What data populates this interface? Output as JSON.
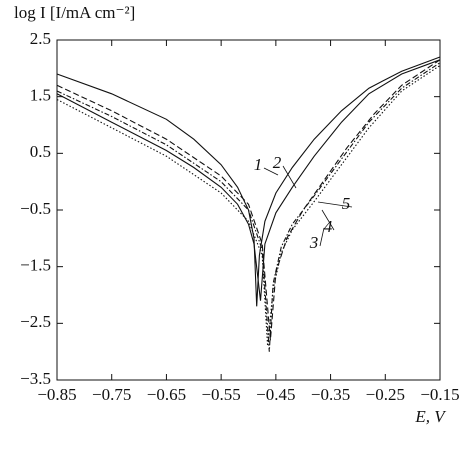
{
  "chart_data": {
    "type": "line",
    "y_label": "log I [I/mA cm⁻²]",
    "x_label": "E, V",
    "xlim": [
      -0.85,
      -0.15
    ],
    "ylim": [
      -3.5,
      2.5
    ],
    "xticks": [
      {
        "value": -0.85,
        "label": "−0.85"
      },
      {
        "value": -0.75,
        "label": "−0.75"
      },
      {
        "value": -0.65,
        "label": "−0.65"
      },
      {
        "value": -0.55,
        "label": "−0.55"
      },
      {
        "value": -0.45,
        "label": "−0.45"
      },
      {
        "value": -0.35,
        "label": "−0.35"
      },
      {
        "value": -0.25,
        "label": "−0.25"
      },
      {
        "value": -0.15,
        "label": "−0.15"
      }
    ],
    "yticks": [
      2.5,
      1.5,
      0.5,
      {
        "value": -0.5,
        "label": "−0.5"
      },
      {
        "value": -1.5,
        "label": "−1.5"
      },
      {
        "value": -2.5,
        "label": "−2.5"
      },
      {
        "value": -3.5,
        "label": "−3.5"
      }
    ],
    "series": [
      {
        "name": "1",
        "color": "#111111",
        "dash": "solid",
        "x": [
          -0.85,
          -0.75,
          -0.65,
          -0.6,
          -0.55,
          -0.52,
          -0.5,
          -0.49,
          -0.485,
          -0.48,
          -0.47,
          -0.45,
          -0.42,
          -0.38,
          -0.33,
          -0.28,
          -0.22,
          -0.15
        ],
        "values": [
          1.9,
          1.55,
          1.1,
          0.75,
          0.3,
          -0.1,
          -0.5,
          -1.0,
          -2.2,
          -1.3,
          -0.7,
          -0.2,
          0.25,
          0.75,
          1.25,
          1.65,
          1.95,
          2.2
        ]
      },
      {
        "name": "2",
        "color": "#111111",
        "dash": "solid",
        "x": [
          -0.85,
          -0.75,
          -0.65,
          -0.6,
          -0.55,
          -0.52,
          -0.5,
          -0.49,
          -0.478,
          -0.47,
          -0.45,
          -0.42,
          -0.38,
          -0.33,
          -0.28,
          -0.22,
          -0.15
        ],
        "values": [
          1.55,
          1.05,
          0.55,
          0.25,
          -0.1,
          -0.4,
          -0.75,
          -1.1,
          -2.1,
          -1.1,
          -0.55,
          -0.1,
          0.45,
          1.05,
          1.55,
          1.9,
          2.15
        ]
      },
      {
        "name": "3",
        "color": "#111111",
        "dash": "dotted",
        "x": [
          -0.85,
          -0.75,
          -0.65,
          -0.55,
          -0.5,
          -0.475,
          -0.465,
          -0.455,
          -0.44,
          -0.42,
          -0.38,
          -0.33,
          -0.28,
          -0.22,
          -0.15
        ],
        "values": [
          1.45,
          0.95,
          0.45,
          -0.2,
          -0.7,
          -1.3,
          -2.9,
          -1.9,
          -1.25,
          -0.85,
          -0.35,
          0.3,
          0.95,
          1.6,
          2.05
        ]
      },
      {
        "name": "4",
        "color": "#111111",
        "dash": "dashdot",
        "x": [
          -0.85,
          -0.75,
          -0.65,
          -0.55,
          -0.5,
          -0.475,
          -0.462,
          -0.455,
          -0.44,
          -0.42,
          -0.38,
          -0.33,
          -0.28,
          -0.22,
          -0.15
        ],
        "values": [
          1.6,
          1.15,
          0.65,
          0.0,
          -0.5,
          -1.2,
          -3.0,
          -1.8,
          -1.15,
          -0.75,
          -0.25,
          0.4,
          1.05,
          1.65,
          2.1
        ]
      },
      {
        "name": "5",
        "color": "#111111",
        "dash": "dashed",
        "x": [
          -0.85,
          -0.75,
          -0.65,
          -0.55,
          -0.5,
          -0.475,
          -0.46,
          -0.45,
          -0.43,
          -0.4,
          -0.36,
          -0.32,
          -0.27,
          -0.22,
          -0.15
        ],
        "values": [
          1.7,
          1.25,
          0.75,
          0.1,
          -0.4,
          -1.1,
          -2.8,
          -1.6,
          -1.0,
          -0.5,
          0.05,
          0.6,
          1.2,
          1.7,
          2.15
        ]
      }
    ]
  }
}
